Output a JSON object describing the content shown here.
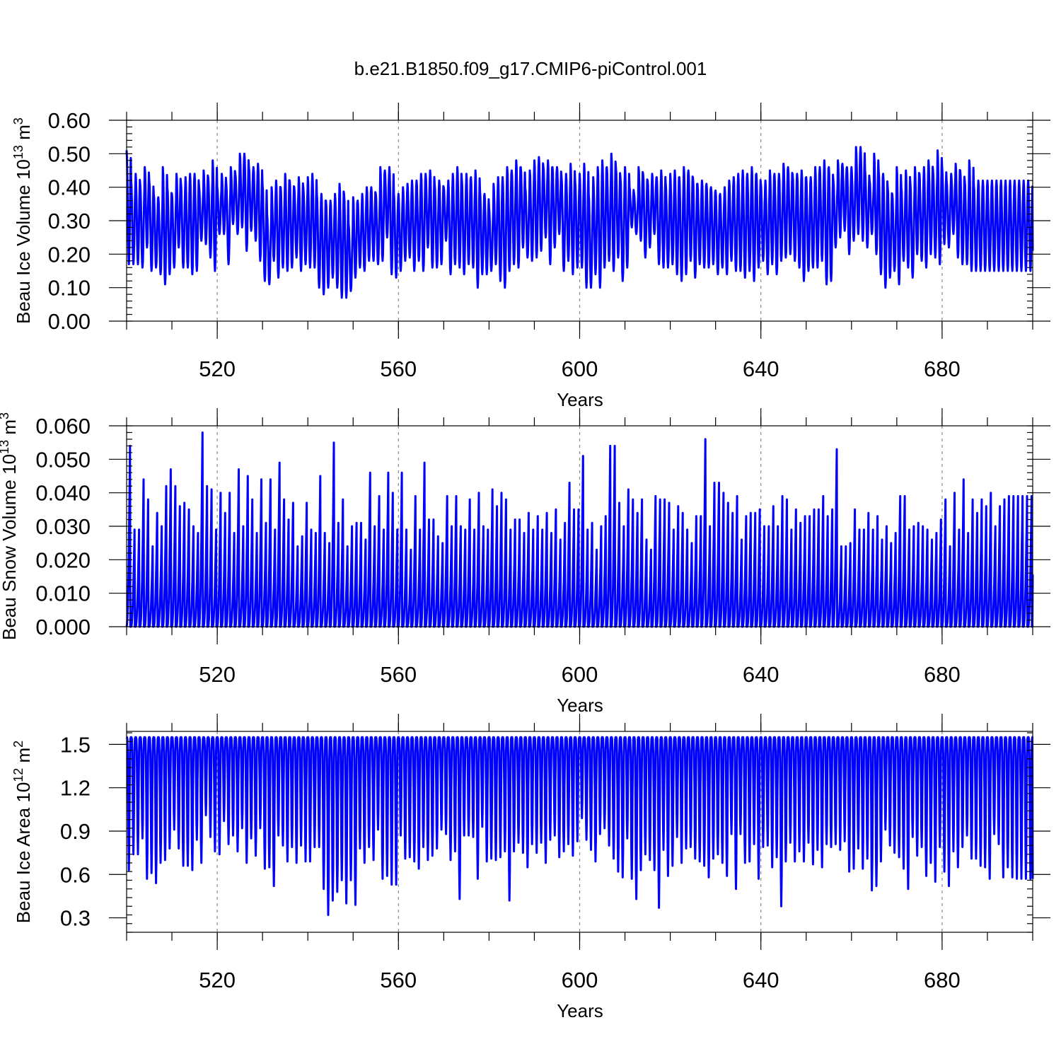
{
  "title": "b.e21.B1850.f09_g17.CMIP6-piControl.001",
  "colors": {
    "series": "#0000ff",
    "grid": "#888888",
    "axes": "#000000"
  },
  "chart_data": [
    {
      "type": "line",
      "ylabel": "Beau Ice Volume 10",
      "ylabel_exp": "13",
      "ylabel_unit": " m",
      "ylabel_unit_exp": "3",
      "xlabel": "Years",
      "xlim": [
        500,
        700
      ],
      "ylim": [
        0,
        0.6
      ],
      "xticks": [
        "520",
        "560",
        "600",
        "640",
        "680"
      ],
      "yticks": [
        "0.00",
        "0.10",
        "0.20",
        "0.30",
        "0.40",
        "0.50",
        "0.60"
      ],
      "grid": "dashed vertical",
      "series": [
        {
          "step": "1 year",
          "peaks": [
            0.51,
            0.42,
            0.44,
            0.41,
            0.46,
            0.42,
            0.38,
            0.37,
            0.46,
            0.4,
            0.38,
            0.44,
            0.41,
            0.43,
            0.44,
            0.44,
            0.4,
            0.45,
            0.43,
            0.48,
            0.4,
            0.44,
            0.41,
            0.46,
            0.44,
            0.5,
            0.5,
            0.46,
            0.46,
            0.47,
            0.41,
            0.32,
            0.4,
            0.42,
            0.4,
            0.44,
            0.42,
            0.4,
            0.43,
            0.4,
            0.43,
            0.44,
            0.38,
            0.38,
            0.36,
            0.36,
            0.38,
            0.41,
            0.38,
            0.29,
            0.37,
            0.36,
            0.38,
            0.4,
            0.4,
            0.38,
            0.46,
            0.45,
            0.46,
            0.38,
            0.38,
            0.4,
            0.41,
            0.42,
            0.42,
            0.44,
            0.44,
            0.45,
            0.41,
            0.42,
            0.4,
            0.42,
            0.44,
            0.46,
            0.42,
            0.44,
            0.43,
            0.45,
            0.39,
            0.38,
            0.34,
            0.41,
            0.43,
            0.43,
            0.46,
            0.45,
            0.48,
            0.46,
            0.4,
            0.45,
            0.48,
            0.49,
            0.46,
            0.48,
            0.46,
            0.46,
            0.43,
            0.44,
            0.47,
            0.42,
            0.44,
            0.47,
            0.38,
            0.43,
            0.46,
            0.48,
            0.46,
            0.5,
            0.46,
            0.43,
            0.46,
            0.4,
            0.38,
            0.46,
            0.44,
            0.42,
            0.44,
            0.43,
            0.45,
            0.41,
            0.44,
            0.45,
            0.43,
            0.46,
            0.45,
            0.43,
            0.41,
            0.42,
            0.41,
            0.4,
            0.39,
            0.38,
            0.4,
            0.42,
            0.43,
            0.44,
            0.45,
            0.44,
            0.46,
            0.44,
            0.41,
            0.42,
            0.45,
            0.44,
            0.44,
            0.47,
            0.46,
            0.44,
            0.44,
            0.45,
            0.43,
            0.43,
            0.46,
            0.46,
            0.48,
            0.46,
            0.42,
            0.48,
            0.47,
            0.46,
            0.46,
            0.52,
            0.52,
            0.45,
            0.42,
            0.5,
            0.45,
            0.44,
            0.4,
            0.38,
            0.46,
            0.4,
            0.45,
            0.41,
            0.46,
            0.44,
            0.46,
            0.48,
            0.45,
            0.51,
            0.46,
            0.42,
            0.44,
            0.47,
            0.45,
            0.42,
            0.48,
            0.41,
            0.42
          ],
          "troughs": [
            0.17,
            0.17,
            0.17,
            0.16,
            0.22,
            0.15,
            0.16,
            0.14,
            0.11,
            0.14,
            0.16,
            0.22,
            0.16,
            0.16,
            0.14,
            0.15,
            0.24,
            0.23,
            0.19,
            0.15,
            0.26,
            0.26,
            0.17,
            0.29,
            0.26,
            0.28,
            0.21,
            0.27,
            0.24,
            0.18,
            0.12,
            0.11,
            0.18,
            0.13,
            0.16,
            0.15,
            0.16,
            0.19,
            0.15,
            0.17,
            0.16,
            0.16,
            0.1,
            0.08,
            0.1,
            0.13,
            0.1,
            0.07,
            0.07,
            0.09,
            0.13,
            0.16,
            0.15,
            0.18,
            0.18,
            0.17,
            0.18,
            0.25,
            0.14,
            0.13,
            0.15,
            0.18,
            0.19,
            0.15,
            0.18,
            0.15,
            0.22,
            0.16,
            0.16,
            0.17,
            0.24,
            0.14,
            0.17,
            0.16,
            0.14,
            0.17,
            0.16,
            0.1,
            0.14,
            0.14,
            0.15,
            0.17,
            0.12,
            0.1,
            0.15,
            0.17,
            0.16,
            0.22,
            0.19,
            0.18,
            0.19,
            0.21,
            0.25,
            0.17,
            0.22,
            0.26,
            0.15,
            0.18,
            0.14,
            0.16,
            0.16,
            0.1,
            0.1,
            0.14,
            0.1,
            0.16,
            0.18,
            0.15,
            0.19,
            0.12,
            0.16,
            0.28,
            0.26,
            0.24,
            0.19,
            0.22,
            0.26,
            0.17,
            0.16,
            0.16,
            0.17,
            0.14,
            0.12,
            0.14,
            0.18,
            0.13,
            0.17,
            0.16,
            0.16,
            0.17,
            0.14,
            0.16,
            0.14,
            0.18,
            0.15,
            0.15,
            0.13,
            0.15,
            0.12,
            0.16,
            0.18,
            0.14,
            0.17,
            0.14,
            0.18,
            0.19,
            0.2,
            0.18,
            0.16,
            0.12,
            0.15,
            0.16,
            0.16,
            0.18,
            0.11,
            0.12,
            0.22,
            0.25,
            0.27,
            0.2,
            0.24,
            0.26,
            0.24,
            0.22,
            0.26,
            0.2,
            0.14,
            0.1,
            0.13,
            0.15,
            0.11,
            0.18,
            0.16,
            0.13,
            0.2,
            0.18,
            0.16,
            0.2,
            0.19,
            0.17,
            0.23,
            0.22,
            0.26,
            0.19,
            0.17,
            0.17,
            0.15,
            0.15
          ]
        }
      ]
    },
    {
      "type": "line",
      "ylabel": "Beau Snow Volume 10",
      "ylabel_exp": "13",
      "ylabel_unit": " m",
      "ylabel_unit_exp": "3",
      "xlabel": "Years",
      "xlim": [
        500,
        700
      ],
      "ylim": [
        0,
        0.06
      ],
      "xticks": [
        "520",
        "560",
        "600",
        "640",
        "680"
      ],
      "yticks": [
        "0.000",
        "0.010",
        "0.020",
        "0.030",
        "0.040",
        "0.050",
        "0.060"
      ],
      "grid": "dashed vertical",
      "series": [
        {
          "step": "1 year",
          "peaks": [
            0.054,
            0.029,
            0.029,
            0.044,
            0.038,
            0.024,
            0.034,
            0.03,
            0.042,
            0.047,
            0.042,
            0.036,
            0.037,
            0.035,
            0.03,
            0.028,
            0.058,
            0.042,
            0.041,
            0.029,
            0.04,
            0.034,
            0.04,
            0.028,
            0.047,
            0.03,
            0.045,
            0.038,
            0.028,
            0.044,
            0.031,
            0.044,
            0.029,
            0.049,
            0.038,
            0.032,
            0.037,
            0.024,
            0.027,
            0.037,
            0.029,
            0.028,
            0.045,
            0.028,
            0.025,
            0.055,
            0.031,
            0.038,
            0.024,
            0.03,
            0.031,
            0.031,
            0.026,
            0.046,
            0.03,
            0.039,
            0.029,
            0.046,
            0.04,
            0.029,
            0.046,
            0.029,
            0.023,
            0.039,
            0.029,
            0.049,
            0.032,
            0.032,
            0.027,
            0.025,
            0.039,
            0.03,
            0.039,
            0.03,
            0.029,
            0.038,
            0.029,
            0.04,
            0.03,
            0.029,
            0.041,
            0.036,
            0.04,
            0.038,
            0.029,
            0.032,
            0.032,
            0.028,
            0.034,
            0.029,
            0.033,
            0.029,
            0.034,
            0.028,
            0.035,
            0.026,
            0.031,
            0.043,
            0.035,
            0.035,
            0.051,
            0.029,
            0.031,
            0.023,
            0.03,
            0.033,
            0.054,
            0.054,
            0.037,
            0.03,
            0.041,
            0.038,
            0.034,
            0.038,
            0.026,
            0.023,
            0.039,
            0.038,
            0.038,
            0.037,
            0.029,
            0.036,
            0.034,
            0.029,
            0.025,
            0.033,
            0.033,
            0.056,
            0.03,
            0.043,
            0.043,
            0.04,
            0.037,
            0.034,
            0.039,
            0.026,
            0.033,
            0.034,
            0.034,
            0.035,
            0.03,
            0.03,
            0.036,
            0.03,
            0.039,
            0.038,
            0.029,
            0.035,
            0.031,
            0.033,
            0.033,
            0.035,
            0.035,
            0.039,
            0.033,
            0.035,
            0.053,
            0.024,
            0.024,
            0.025,
            0.035,
            0.029,
            0.029,
            0.034,
            0.029,
            0.033,
            0.026,
            0.03,
            0.025,
            0.028,
            0.039,
            0.039,
            0.029,
            0.03,
            0.031,
            0.03,
            0.029,
            0.026,
            0.028,
            0.032,
            0.038,
            0.024,
            0.04,
            0.029,
            0.044,
            0.028,
            0.038,
            0.034,
            0.038,
            0.036,
            0.04,
            0.03,
            0.036,
            0.038,
            0.039
          ],
          "troughs": [
            0.0
          ]
        }
      ]
    },
    {
      "type": "line",
      "ylabel": "Beau Ice Area 10",
      "ylabel_exp": "12",
      "ylabel_unit": " m",
      "ylabel_unit_exp": "2",
      "xlabel": "Years",
      "xlim": [
        500,
        700
      ],
      "ylim": [
        0.2,
        1.59
      ],
      "xticks": [
        "520",
        "560",
        "600",
        "640",
        "680"
      ],
      "yticks": [
        "0.3",
        "0.6",
        "0.9",
        "1.2",
        "1.5"
      ],
      "grid": "dashed vertical",
      "series": [
        {
          "step": "1 year",
          "peaks": [
            1.55
          ],
          "troughs": [
            0.63,
            0.74,
            0.74,
            0.85,
            0.57,
            0.61,
            0.54,
            0.68,
            0.7,
            0.78,
            0.91,
            0.78,
            0.66,
            0.66,
            0.63,
            0.84,
            0.68,
            1.01,
            0.86,
            0.76,
            0.74,
            0.97,
            0.81,
            0.87,
            0.76,
            0.92,
            0.68,
            0.85,
            0.73,
            0.92,
            0.64,
            0.65,
            0.52,
            0.87,
            0.8,
            0.69,
            0.79,
            0.68,
            0.8,
            0.69,
            0.69,
            0.79,
            0.79,
            0.5,
            0.32,
            0.42,
            0.48,
            0.56,
            0.4,
            0.56,
            0.39,
            0.78,
            0.68,
            0.79,
            0.7,
            0.91,
            0.57,
            0.59,
            0.53,
            0.53,
            0.87,
            0.71,
            0.72,
            0.69,
            0.64,
            0.79,
            0.7,
            0.73,
            0.78,
            0.91,
            0.88,
            0.7,
            0.76,
            0.43,
            0.87,
            0.87,
            0.86,
            0.57,
            0.93,
            0.69,
            0.71,
            0.7,
            0.72,
            0.76,
            0.42,
            0.76,
            0.82,
            0.75,
            0.65,
            0.81,
            0.75,
            0.82,
            0.68,
            0.84,
            0.87,
            0.72,
            0.76,
            0.81,
            0.73,
            0.83,
            0.99,
            0.84,
            0.77,
            0.69,
            0.88,
            0.92,
            0.8,
            0.71,
            0.62,
            0.58,
            0.85,
            0.57,
            0.43,
            0.63,
            0.74,
            0.7,
            0.63,
            0.37,
            0.77,
            0.59,
            0.66,
            0.86,
            0.68,
            0.78,
            0.79,
            0.71,
            0.69,
            0.66,
            0.58,
            0.71,
            0.74,
            0.68,
            0.59,
            0.88,
            0.5,
            0.88,
            0.68,
            0.69,
            0.81,
            0.57,
            0.79,
            0.8,
            0.65,
            0.72,
            0.38,
            0.69,
            0.82,
            0.69,
            0.76,
            0.69,
            0.82,
            0.67,
            0.77,
            0.65,
            0.81,
            0.79,
            0.81,
            0.77,
            0.83,
            0.62,
            0.64,
            0.78,
            0.64,
            0.71,
            0.49,
            0.52,
            0.69,
            0.91,
            0.8,
            0.75,
            0.72,
            0.64,
            0.5,
            0.86,
            0.73,
            0.79,
            0.59,
            0.68,
            0.55,
            0.79,
            0.62,
            0.52,
            0.76,
            0.65,
            0.79,
            0.87,
            0.71,
            0.71,
            0.66,
            0.65,
            0.57,
            0.88,
            0.81,
            0.58,
            0.65,
            0.58,
            0.57
          ]
        }
      ]
    }
  ]
}
